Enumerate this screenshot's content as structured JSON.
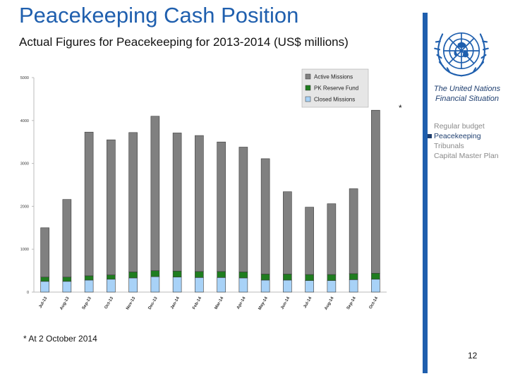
{
  "header": {
    "title": "Peacekeeping Cash Position",
    "subtitle": "Actual Figures for Peacekeeping for 2013-2014 (US$ millions)"
  },
  "sidebar": {
    "heading": "The United Nations Financial Situation",
    "items": [
      {
        "label": "Regular budget",
        "active": false
      },
      {
        "label": "Peacekeeping",
        "active": true
      },
      {
        "label": "Tribunals",
        "active": false
      },
      {
        "label": "Capital Master Plan",
        "active": false
      }
    ]
  },
  "logo": {
    "icon": "un-emblem-icon",
    "color": "#1f5fae"
  },
  "annotation": "*",
  "footnote": "* At 2 October 2014",
  "page_number": "12",
  "chart_data": {
    "type": "bar",
    "stacked": true,
    "categories": [
      "Jul-13",
      "Aug-13",
      "Sep-13",
      "Oct-13",
      "Nov-13",
      "Dec-13",
      "Jan-14",
      "Feb-14",
      "Mar-14",
      "Apr-14",
      "May-14",
      "Jun-14",
      "Jul-14",
      "Aug-14",
      "Sep-14",
      "Oct-14"
    ],
    "series": [
      {
        "name": "Closed Missions",
        "color": "#a8d2f7",
        "values": [
          250,
          250,
          280,
          300,
          330,
          360,
          350,
          340,
          340,
          330,
          280,
          280,
          270,
          270,
          290,
          300
        ]
      },
      {
        "name": "PK Reserve Fund",
        "color": "#1f7d1f",
        "values": [
          100,
          100,
          100,
          100,
          140,
          140,
          140,
          140,
          140,
          140,
          140,
          140,
          140,
          140,
          140,
          140
        ]
      },
      {
        "name": "Active Missions",
        "color": "#808080",
        "values": [
          1150,
          1810,
          3350,
          3150,
          3250,
          3600,
          3220,
          3170,
          3020,
          2910,
          2690,
          1920,
          1570,
          1650,
          1980,
          3800
        ]
      }
    ],
    "yticks": [
      0,
      1000,
      2000,
      3000,
      4000,
      5000
    ],
    "ylim": [
      0,
      5000
    ],
    "legend_position": "top-right",
    "grid": false
  }
}
